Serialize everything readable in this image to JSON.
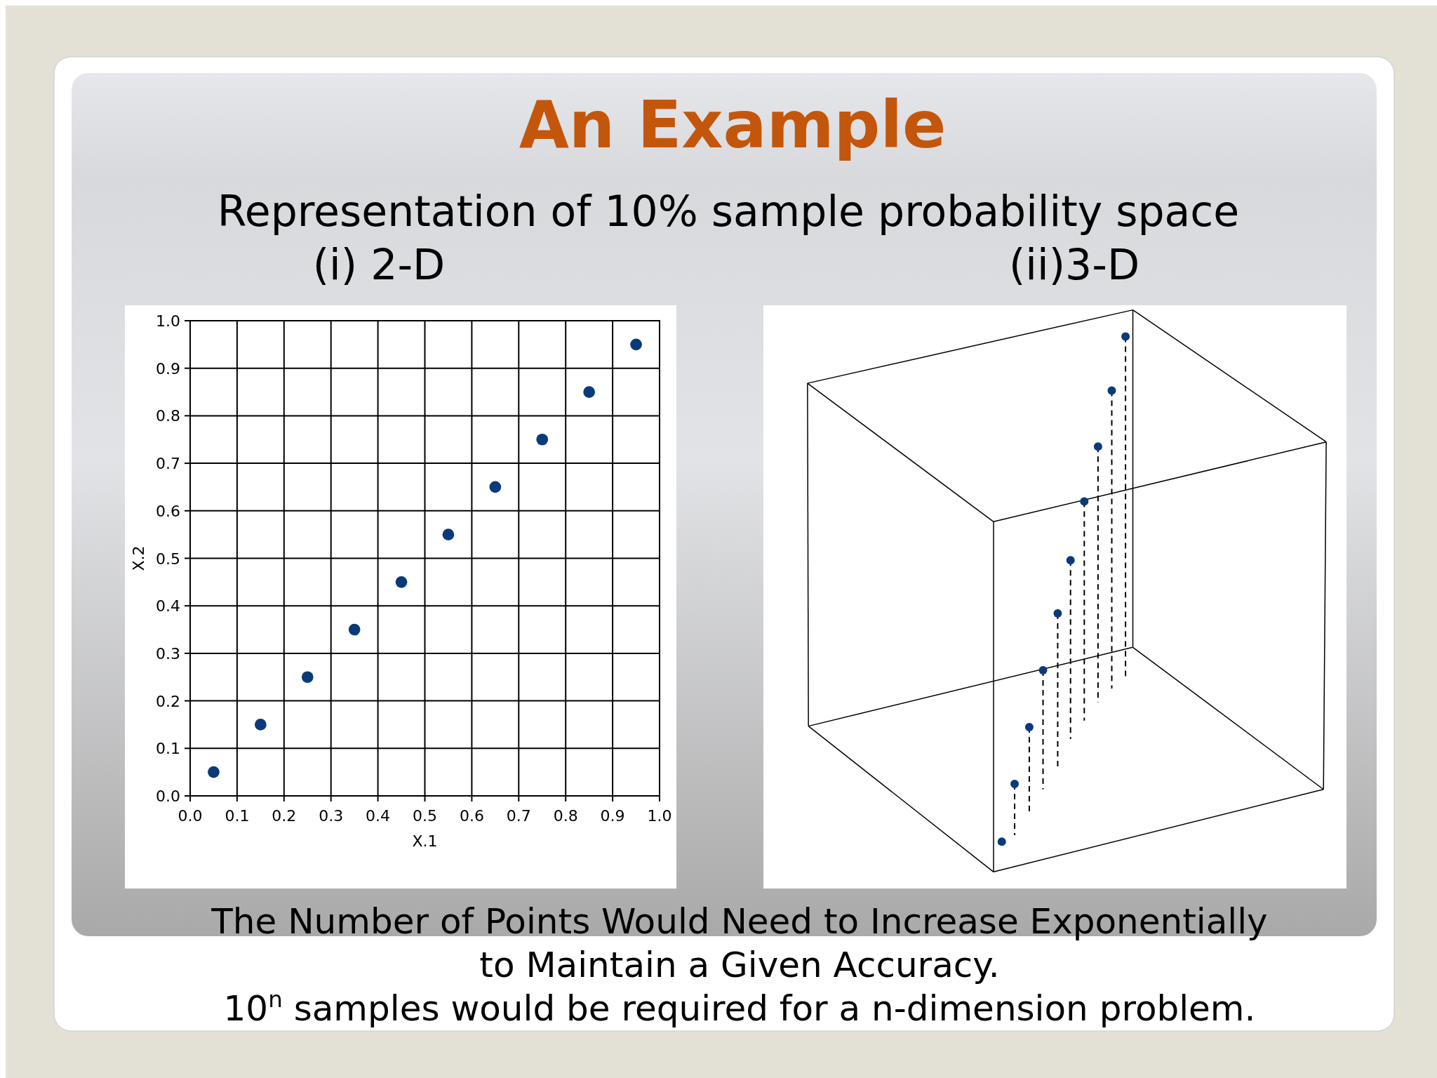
{
  "chart_data": [
    {
      "type": "scatter",
      "title": "An Example",
      "subtitle": "Representation of 10% sample probability space",
      "xlabel": "X.1",
      "ylabel": "X.2",
      "annotations": [
        "(i) 2-D",
        "The Number of Points Would Need to Increase Exponentially",
        "to Maintain a Given Accuracy.",
        "10$^{n}$ samples would be required for a n-dimension problem."
      ],
      "x": [
        0.05,
        0.15,
        0.25,
        0.35,
        0.45,
        0.55,
        0.65,
        0.75,
        0.85,
        0.95
      ],
      "series": [
        {
          "color": "#0b3a7a",
          "values": [
            0.05,
            0.15,
            0.25,
            0.35,
            0.45,
            0.55,
            0.65,
            0.75,
            0.85,
            0.95
          ]
        }
      ],
      "xlim": [
        0,
        1
      ],
      "ylim": [
        0,
        1
      ],
      "xticks": [
        {
          "value": 0,
          "label": "0.0"
        },
        0.1,
        0.2,
        0.3,
        0.4,
        0.5,
        0.6,
        0.7,
        0.8,
        0.9,
        {
          "value": 1,
          "label": "1.0"
        }
      ],
      "yticks": [
        {
          "value": 0,
          "label": "0.0"
        },
        0.1,
        0.2,
        0.3,
        0.4,
        0.5,
        0.6,
        0.7,
        0.8,
        0.9,
        {
          "value": 1,
          "label": "1.0"
        }
      ],
      "grid": true,
      "marker": "circle"
    },
    {
      "type": "other",
      "title": "(ii)3-D"
    }
  ]
}
